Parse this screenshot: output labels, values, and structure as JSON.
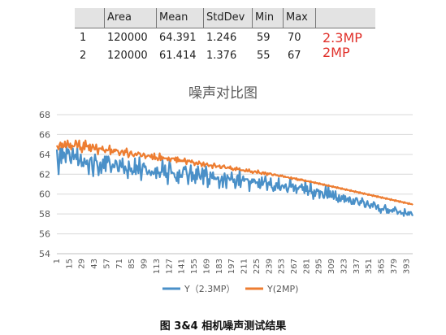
{
  "stats_table": {
    "headers": [
      "",
      "Area",
      "Mean",
      "StdDev",
      "Min",
      "Max"
    ],
    "rows": [
      {
        "id": "1",
        "area": "120000",
        "mean": "64.391",
        "stddev": "1.246",
        "min": "59",
        "max": "70"
      },
      {
        "id": "2",
        "area": "120000",
        "mean": "61.414",
        "stddev": "1.376",
        "min": "55",
        "max": "67"
      }
    ],
    "notes": [
      "2.3MP",
      "2MP"
    ],
    "note_color": "#e0302a"
  },
  "caption": "图 3&4  相机噪声测试结果",
  "chart_data": {
    "type": "line",
    "title": "噪声对比图",
    "xlabel": "",
    "ylabel": "",
    "ylim": [
      54,
      68
    ],
    "yticks": [
      54,
      56,
      58,
      60,
      62,
      64,
      66,
      68
    ],
    "xlim": [
      1,
      400
    ],
    "xticks": [
      1,
      15,
      29,
      43,
      57,
      71,
      85,
      99,
      113,
      127,
      141,
      155,
      169,
      183,
      197,
      211,
      225,
      239,
      253,
      267,
      281,
      295,
      309,
      323,
      337,
      351,
      365,
      379,
      393
    ],
    "grid": true,
    "legend_position": "bottom",
    "series": [
      {
        "name": "Y（2.3MP）",
        "color": "#4a90c8",
        "values": [
          64.5,
          63.2,
          62.0,
          63.8,
          64.6,
          63.1,
          64.9,
          63.6,
          64.2,
          63.9,
          63.2,
          64.8,
          64.1,
          64.5,
          64.2,
          63.4,
          63.1,
          64.0,
          64.6,
          63.5,
          63.9,
          64.0,
          63.5,
          64.7,
          62.9,
          63.1,
          63.5,
          64.0,
          62.8,
          63.2,
          62.8,
          63.6,
          63.2,
          63.0,
          63.4,
          62.9,
          62.0,
          63.4,
          63.6,
          63.7,
          62.5,
          61.8,
          63.3,
          64.0,
          63.4,
          63.3,
          62.7,
          61.9,
          62.7,
          63.2,
          62.1,
          62.8,
          63.5,
          62.6,
          63.8,
          62.3,
          63.8,
          63.2,
          63.8,
          63.5,
          62.9,
          62.2,
          62.7,
          63.0,
          62.7,
          62.7,
          63.4,
          63.3,
          62.9,
          62.3,
          62.3,
          63.4,
          62.9,
          62.7,
          63.6,
          62.6,
          62.1,
          62.8,
          62.5,
          62.3,
          61.6,
          63.3,
          62.7,
          62.3,
          62.6,
          62.0,
          62.3,
          62.2,
          63.6,
          62.0,
          62.9,
          62.7,
          62.1,
          63.7,
          62.7,
          61.4,
          62.3,
          63.0,
          63.1,
          62.7,
          62.8,
          62.3,
          62.0,
          62.2,
          62.4,
          62.1,
          61.9,
          62.3,
          62.2,
          62.0,
          62.2,
          62.6,
          61.6,
          62.7,
          62.1,
          62.2,
          61.7,
          62.2,
          62.2,
          63.5,
          62.4,
          61.9,
          62.9,
          61.7,
          62.1,
          61.0,
          62.4,
          63.4,
          62.9,
          62.1,
          62.2,
          62.1,
          62.1,
          61.7,
          61.6,
          61.3,
          62.2,
          61.1,
          62.4,
          61.7,
          61.9,
          61.7,
          62.3,
          62.7,
          62.5,
          62.8,
          62.3,
          61.8,
          61.0,
          61.9,
          62.3,
          62.9,
          61.3,
          62.2,
          61.5,
          61.9,
          61.1,
          62.5,
          61.5,
          62.8,
          62.1,
          61.7,
          61.5,
          62.0,
          62.6,
          61.0,
          62.4,
          61.8,
          62.8,
          62.2,
          60.7,
          61.5,
          61.0,
          62.2,
          61.9,
          61.6,
          62.2,
          61.5,
          61.7,
          61.5,
          61.5,
          61.7,
          61.7,
          60.6,
          61.3,
          61.4,
          61.8,
          60.7,
          61.5,
          62.1,
          61.4,
          60.6,
          61.9,
          61.7,
          61.6,
          61.4,
          61.5,
          62.2,
          61.5,
          61.2,
          61.5,
          60.6,
          60.9,
          61.8,
          61.9,
          60.9,
          62.6,
          60.7,
          61.4,
          61.4,
          61.8,
          61.3,
          61.5,
          61.5,
          61.5,
          61.5,
          61.3,
          60.3,
          61.3,
          61.1,
          61.5,
          61.2,
          61.5,
          61.4,
          61.1,
          61.2,
          61.2,
          60.7,
          61.5,
          60.6,
          60.9,
          61.7,
          60.9,
          61.2,
          61.3,
          61.8,
          61.2,
          60.4,
          61.1,
          61.2,
          60.9,
          61.6,
          60.7,
          60.6,
          60.3,
          60.8,
          60.4,
          61.1,
          61.1,
          60.6,
          61.6,
          60.5,
          60.4,
          60.8,
          60.9,
          60.8,
          60.6,
          60.9,
          61.0,
          60.4,
          60.2,
          60.6,
          60.8,
          61.6,
          60.7,
          60.9,
          61.0,
          60.3,
          60.7,
          60.9,
          60.1,
          60.6,
          60.5,
          60.7,
          60.8,
          60.7,
          61.0,
          60.4,
          60.7,
          60.1,
          61.3,
          60.3,
          60.8,
          59.9,
          60.3,
          60.3,
          61.2,
          60.1,
          60.2,
          59.5,
          60.4,
          59.8,
          60.2,
          60.5,
          60.3,
          60.4,
          59.6,
          60.3,
          60.2,
          60.2,
          59.7,
          59.6,
          60.0,
          60.8,
          59.9,
          59.6,
          60.8,
          59.7,
          60.3,
          59.7,
          59.7,
          60.3,
          59.5,
          59.8,
          60.3,
          59.4,
          59.6,
          59.2,
          59.9,
          59.3,
          59.3,
          59.8,
          59.5,
          59.9,
          59.2,
          59.8,
          59.3,
          59.5,
          59.6,
          59.2,
          59.7,
          59.4,
          59.0,
          59.0,
          59.5,
          59.0,
          59.3,
          59.6,
          59.6,
          59.3,
          59.0,
          58.9,
          59.3,
          59.1,
          59.6,
          59.3,
          59.2,
          58.7,
          58.7,
          59.1,
          59.3,
          58.9,
          58.8,
          58.6,
          59.0,
          59.0,
          58.7,
          59.2,
          59.1,
          58.8,
          58.5,
          58.8,
          58.9,
          58.3,
          58.5,
          58.1,
          58.5,
          58.5,
          58.4,
          58.7,
          58.9,
          58.5,
          58.1,
          58.5,
          58.1,
          58.4,
          58.3,
          58.4,
          58.2,
          58.5,
          58.3,
          58.7,
          58.5,
          58.3,
          58.0,
          58.2,
          58.2,
          58.3,
          58.0,
          58.1,
          58.1,
          57.8,
          58.5,
          58.1,
          58.0,
          57.9,
          58.2,
          57.9,
          58.2,
          58.2,
          58.0,
          57.8
        ]
      },
      {
        "name": "Y(2MP)",
        "color": "#ed7d31",
        "values": [
          64.9,
          64.7,
          64.5,
          65.0,
          65.2,
          64.7,
          65.1,
          64.7,
          64.8,
          65.3,
          64.7,
          64.9,
          65.4,
          64.9,
          64.7,
          65.1,
          64.5,
          64.9,
          64.8,
          64.8,
          64.9,
          65.4,
          65.2,
          64.7,
          64.9,
          65.4,
          64.5,
          64.7,
          64.2,
          64.6,
          65.2,
          64.5,
          65.4,
          64.8,
          64.8,
          64.9,
          64.4,
          65.0,
          64.3,
          64.6,
          65.0,
          64.8,
          64.5,
          64.5,
          65.0,
          64.5,
          64.0,
          64.6,
          64.6,
          64.6,
          64.5,
          64.8,
          64.4,
          64.4,
          64.2,
          64.5,
          64.4,
          64.4,
          64.5,
          64.9,
          64.0,
          64.5,
          64.2,
          64.2,
          64.5,
          64.3,
          64.5,
          64.4,
          64.4,
          64.2,
          63.9,
          64.1,
          64.3,
          64.4,
          64.2,
          63.9,
          64.4,
          64.2,
          64.6,
          64.2,
          63.7,
          63.9,
          64.2,
          64.3,
          64.0,
          63.9,
          63.8,
          64.0,
          64.1,
          63.9,
          64.0,
          64.2,
          64.1,
          64.1,
          63.8,
          63.8,
          63.9,
          64.1,
          64.0,
          63.6,
          63.8,
          63.8,
          63.9,
          63.9,
          63.8,
          63.7,
          64.0,
          63.5,
          63.6,
          64.1,
          63.5,
          63.7,
          63.6,
          63.4,
          63.6,
          64.1,
          63.4,
          63.8,
          63.5,
          63.7,
          63.6,
          63.6,
          63.6,
          63.6,
          63.4,
          63.7,
          63.5,
          63.3,
          63.6,
          63.6,
          63.6,
          63.6,
          63.4,
          63.7,
          63.2,
          63.7,
          63.3,
          63.5,
          63.3,
          63.4,
          63.3,
          63.4,
          63.3,
          63.6,
          63.3,
          63.0,
          63.4,
          63.3,
          63.4,
          63.3,
          63.2,
          63.4,
          63.2,
          63.2,
          62.9,
          63.1,
          63.2,
          63.0,
          63.0,
          63.3,
          63.1,
          63.1,
          62.8,
          63.0,
          63.2,
          62.8,
          63.0,
          63.0,
          63.1,
          62.9,
          62.8,
          62.9,
          62.9,
          62.9,
          62.6,
          62.9,
          63.1,
          62.9,
          62.7,
          62.8,
          62.8,
          62.8,
          62.9,
          62.6,
          62.6,
          62.8,
          62.8,
          62.9,
          62.7,
          62.6,
          62.6,
          62.7,
          62.7,
          62.6,
          62.8,
          62.5,
          62.6,
          62.4,
          62.5,
          62.6,
          62.4,
          62.7,
          62.5,
          62.5,
          62.6,
          62.4,
          62.4,
          62.4,
          62.4,
          62.4,
          62.3,
          62.3,
          62.5,
          62.3,
          62.3,
          62.5,
          62.3,
          62.2,
          62.3,
          62.1,
          62.2,
          62.3,
          62.3,
          62.2,
          62.1,
          62.4,
          62.2,
          62.1,
          62.1,
          62.0,
          62.2,
          62.2,
          62.0,
          62.2,
          62.1,
          61.9,
          62.1,
          62.0,
          62.1,
          62.1,
          62.0,
          61.9,
          61.9,
          62.0,
          62.0,
          61.9,
          61.9,
          61.9,
          61.8,
          61.8,
          61.9,
          61.8,
          61.9,
          61.8,
          61.7,
          61.8,
          61.7,
          61.7,
          61.7,
          61.7,
          61.6,
          61.6,
          61.7,
          61.5,
          61.6,
          61.6,
          61.6,
          61.5,
          61.6,
          61.4,
          61.5,
          61.4,
          61.5,
          61.4,
          61.5,
          61.4,
          61.4,
          61.3,
          61.4,
          61.3,
          61.3,
          61.3,
          61.3,
          61.2,
          61.3,
          61.2,
          61.2,
          61.2,
          61.1,
          61.2,
          61.1,
          61.1,
          61.1,
          61.0,
          61.1,
          61.0,
          61.0,
          61.0,
          60.9,
          61.0,
          60.9,
          60.9,
          60.9,
          60.8,
          60.9,
          60.8,
          60.8,
          60.8,
          60.7,
          60.8,
          60.7,
          60.7,
          60.7,
          60.6,
          60.7,
          60.6,
          60.6,
          60.6,
          60.5,
          60.6,
          60.5,
          60.5,
          60.5,
          60.4,
          60.5,
          60.4,
          60.4,
          60.4,
          60.3,
          60.4,
          60.3,
          60.3,
          60.3,
          60.2,
          60.3,
          60.2,
          60.2,
          60.2,
          60.1,
          60.2,
          60.1,
          60.1,
          60.1,
          60.0,
          60.1,
          60.0,
          60.0,
          60.0,
          59.9,
          60.0,
          59.9,
          59.9,
          59.9,
          59.8,
          59.9,
          59.8,
          59.8,
          59.8,
          59.7,
          59.8,
          59.7,
          59.7,
          59.7,
          59.6,
          59.7,
          59.6,
          59.6,
          59.6,
          59.5,
          59.6,
          59.5,
          59.5,
          59.5,
          59.4,
          59.5,
          59.4,
          59.4,
          59.4,
          59.3,
          59.4,
          59.3,
          59.3,
          59.3,
          59.2,
          59.3,
          59.2,
          59.2,
          59.2,
          59.1,
          59.2,
          59.1,
          59.1,
          59.1,
          59.0,
          59.1,
          59.0,
          59.0,
          59.0,
          58.9
        ]
      }
    ]
  }
}
